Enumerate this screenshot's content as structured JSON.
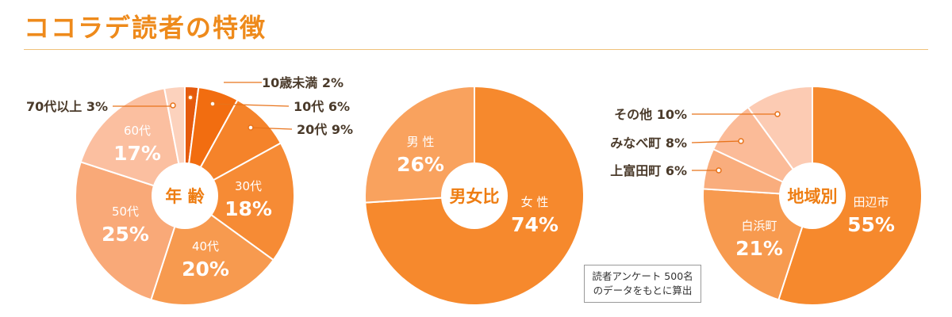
{
  "page": {
    "title": "ココラデ読者の特徴"
  },
  "note": {
    "text": "読者アンケート 500名\nのデータをもとに算出"
  },
  "chart_data": [
    {
      "type": "pie",
      "title": "年 齢",
      "slices": [
        {
          "label": "10歳未満",
          "value": 2,
          "color": "#e55a0d",
          "display": "10歳未満 2%"
        },
        {
          "label": "10代",
          "value": 6,
          "color": "#f26d10",
          "display": "10代 6%"
        },
        {
          "label": "20代",
          "value": 9,
          "color": "#f5832a",
          "display": "20代 9%"
        },
        {
          "label": "30代",
          "value": 18,
          "color": "#f68b35",
          "display": "30代\n18%"
        },
        {
          "label": "40代",
          "value": 20,
          "color": "#f79a4f",
          "display": "40代\n20%"
        },
        {
          "label": "50代",
          "value": 25,
          "color": "#f9a978",
          "display": "50代\n25%"
        },
        {
          "label": "60代",
          "value": 17,
          "color": "#fbbfa0",
          "display": "60代\n17%"
        },
        {
          "label": "70代以上",
          "value": 3,
          "color": "#fcd2bd",
          "display": "70代以上 3%"
        }
      ]
    },
    {
      "type": "pie",
      "title": "男女比",
      "slices": [
        {
          "label": "女 性",
          "value": 74,
          "color": "#f6892d",
          "display": "女 性\n74%"
        },
        {
          "label": "男 性",
          "value": 26,
          "color": "#f9a25e",
          "display": "男 性\n26%"
        }
      ]
    },
    {
      "type": "pie",
      "title": "地域別",
      "slices": [
        {
          "label": "田辺市",
          "value": 55,
          "color": "#f6892d",
          "display": "田辺市\n55%"
        },
        {
          "label": "白浜町",
          "value": 21,
          "color": "#f79a4f",
          "display": "白浜町\n21%"
        },
        {
          "label": "上富田町",
          "value": 6,
          "color": "#f9ad7d",
          "display": "上富田町 6%"
        },
        {
          "label": "みなべ町",
          "value": 8,
          "color": "#fbbb98",
          "display": "みなべ町 8%"
        },
        {
          "label": "その他",
          "value": 10,
          "color": "#fccbb3",
          "display": "その他 10%"
        }
      ]
    }
  ]
}
